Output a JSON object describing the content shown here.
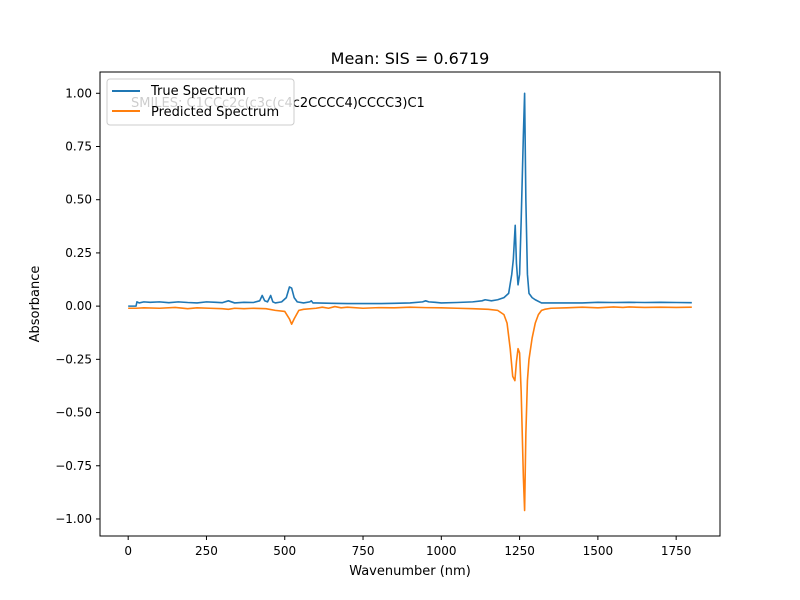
{
  "chart_data": {
    "type": "line",
    "title": "Mean: SIS = 0.6719",
    "xlabel": "Wavenumber (nm)",
    "ylabel": "Absorbance",
    "xlim": [
      -90,
      1890
    ],
    "ylim": [
      -1.08,
      1.1
    ],
    "xticks": [
      0,
      250,
      500,
      750,
      1000,
      1250,
      1500,
      1750
    ],
    "xtick_labels": [
      "0",
      "250",
      "500",
      "750",
      "1000",
      "1250",
      "1500",
      "1750"
    ],
    "yticks": [
      1.0,
      0.75,
      0.5,
      0.25,
      0.0,
      -0.25,
      -0.5,
      -0.75,
      -1.0
    ],
    "ytick_labels": [
      "1.00",
      "0.75",
      "0.50",
      "0.25",
      "0.00",
      "−0.25",
      "−0.50",
      "−0.75",
      "−1.00"
    ],
    "grid": false,
    "legend_position": "upper-left",
    "annotation": "SMILES: C1CCc2c(c3c(c4c2CCCC4)CCCC3)C1",
    "series": [
      {
        "name": "True Spectrum",
        "color": "#1f77b4",
        "x": [
          0,
          25,
          28,
          35,
          50,
          70,
          100,
          130,
          160,
          190,
          220,
          250,
          280,
          300,
          320,
          340,
          370,
          400,
          420,
          428,
          436,
          445,
          455,
          462,
          470,
          490,
          505,
          515,
          522,
          530,
          540,
          560,
          580,
          585,
          590,
          600,
          650,
          700,
          750,
          800,
          850,
          900,
          940,
          950,
          960,
          980,
          1000,
          1050,
          1100,
          1130,
          1140,
          1160,
          1180,
          1200,
          1215,
          1225,
          1230,
          1236,
          1240,
          1245,
          1250,
          1255,
          1262,
          1266,
          1270,
          1275,
          1280,
          1285,
          1290,
          1300,
          1320,
          1350,
          1400,
          1450,
          1500,
          1550,
          1600,
          1650,
          1700,
          1750,
          1800
        ],
        "y": [
          0.0,
          0.0,
          0.02,
          0.015,
          0.02,
          0.018,
          0.02,
          0.016,
          0.02,
          0.017,
          0.015,
          0.02,
          0.018,
          0.016,
          0.025,
          0.015,
          0.018,
          0.017,
          0.025,
          0.05,
          0.025,
          0.02,
          0.05,
          0.02,
          0.015,
          0.02,
          0.04,
          0.09,
          0.085,
          0.04,
          0.02,
          0.015,
          0.02,
          0.025,
          0.015,
          0.015,
          0.013,
          0.012,
          0.012,
          0.012,
          0.013,
          0.015,
          0.02,
          0.025,
          0.02,
          0.018,
          0.015,
          0.017,
          0.02,
          0.025,
          0.03,
          0.025,
          0.03,
          0.04,
          0.06,
          0.15,
          0.22,
          0.38,
          0.2,
          0.1,
          0.15,
          0.4,
          0.8,
          1.0,
          0.5,
          0.15,
          0.06,
          0.05,
          0.04,
          0.03,
          0.015,
          0.015,
          0.015,
          0.015,
          0.018,
          0.017,
          0.018,
          0.017,
          0.018,
          0.017,
          0.016
        ]
      },
      {
        "name": "Predicted Spectrum",
        "color": "#ff7f0e",
        "x": [
          0,
          25,
          50,
          100,
          150,
          190,
          220,
          260,
          300,
          320,
          340,
          370,
          400,
          440,
          470,
          500,
          515,
          522,
          530,
          545,
          560,
          600,
          620,
          640,
          660,
          680,
          700,
          750,
          800,
          850,
          900,
          950,
          1000,
          1050,
          1100,
          1150,
          1180,
          1200,
          1210,
          1220,
          1228,
          1235,
          1240,
          1245,
          1250,
          1255,
          1262,
          1266,
          1270,
          1275,
          1280,
          1290,
          1300,
          1310,
          1320,
          1330,
          1350,
          1400,
          1450,
          1500,
          1550,
          1580,
          1600,
          1650,
          1700,
          1750,
          1800
        ],
        "y": [
          -0.01,
          -0.01,
          -0.008,
          -0.01,
          -0.006,
          -0.012,
          -0.008,
          -0.01,
          -0.012,
          -0.015,
          -0.01,
          -0.012,
          -0.01,
          -0.012,
          -0.02,
          -0.025,
          -0.06,
          -0.085,
          -0.06,
          -0.02,
          -0.015,
          -0.01,
          -0.005,
          -0.01,
          -0.002,
          -0.008,
          -0.005,
          -0.01,
          -0.007,
          -0.008,
          -0.005,
          -0.007,
          -0.008,
          -0.01,
          -0.012,
          -0.015,
          -0.02,
          -0.04,
          -0.08,
          -0.2,
          -0.33,
          -0.35,
          -0.26,
          -0.2,
          -0.22,
          -0.4,
          -0.8,
          -0.96,
          -0.6,
          -0.35,
          -0.25,
          -0.15,
          -0.08,
          -0.04,
          -0.02,
          -0.015,
          -0.01,
          -0.008,
          -0.005,
          -0.008,
          -0.004,
          -0.006,
          -0.004,
          -0.006,
          -0.005,
          -0.006,
          -0.005
        ]
      }
    ]
  }
}
